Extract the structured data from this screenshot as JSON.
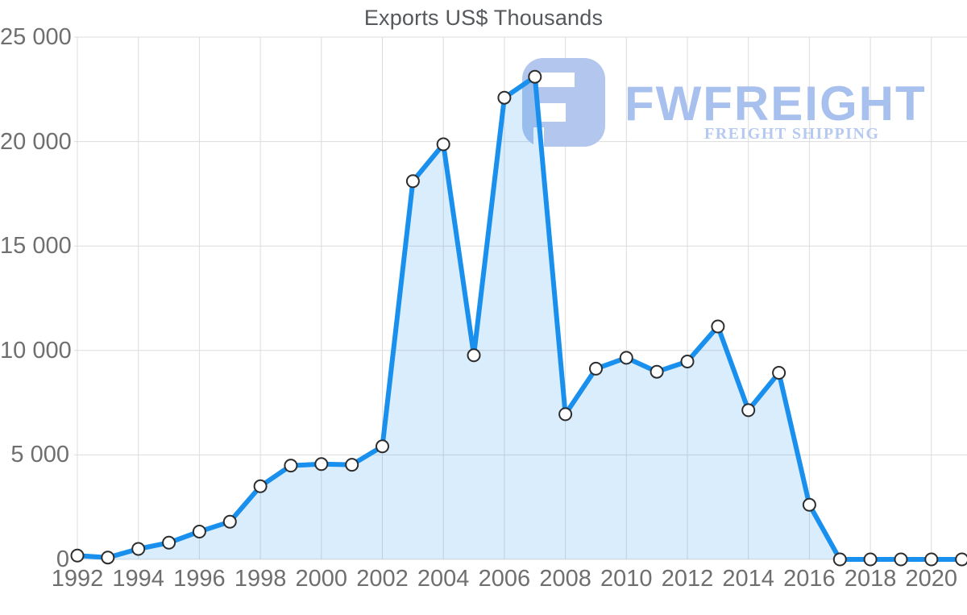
{
  "chart_title": "Exports US$ Thousands",
  "watermark": {
    "brand": "FWFREIGHT",
    "tagline": "FREIGHT SHIPPING",
    "brand_color": "#a7c0ed",
    "tagline_color": "#b5c9f1",
    "logo_color": "#b2c6ee"
  },
  "colors": {
    "line": "#1990ee",
    "area_fill": "rgba(25,144,238,0.16)",
    "marker_fill": "#ffffff",
    "marker_stroke": "#2d2d2d",
    "gridline": "#dcdcdc",
    "tick_text": "#6f6f6f",
    "title_text": "#55585c"
  },
  "chart_data": {
    "type": "area",
    "title": "Exports US$ Thousands",
    "series_name": "Exports US$ Thousands",
    "x": [
      1992,
      1993,
      1994,
      1995,
      1996,
      1997,
      1998,
      1999,
      2000,
      2001,
      2002,
      2003,
      2004,
      2005,
      2006,
      2007,
      2008,
      2009,
      2010,
      2011,
      2012,
      2013,
      2014,
      2015,
      2016,
      2017,
      2018,
      2019,
      2020,
      2021
    ],
    "values": [
      180,
      90,
      500,
      800,
      1330,
      1800,
      3500,
      4490,
      4560,
      4530,
      5410,
      18100,
      19870,
      9770,
      22100,
      23100,
      6950,
      9130,
      9650,
      8980,
      9470,
      11150,
      7140,
      8930,
      2610,
      0,
      0,
      0,
      0,
      0
    ],
    "xlabel": "",
    "ylabel": "",
    "ylim": [
      0,
      25000
    ],
    "y_ticks": [
      0,
      5000,
      10000,
      15000,
      20000,
      25000
    ],
    "y_tick_labels": [
      "0",
      "5 000",
      "10 000",
      "15 000",
      "20 000",
      "25 000"
    ],
    "x_tick_labels": [
      "1992",
      "1994",
      "1996",
      "1998",
      "2000",
      "2002",
      "2004",
      "2006",
      "2008",
      "2010",
      "2012",
      "2014",
      "2016",
      "2018",
      "2020"
    ],
    "grid": true,
    "legend": false,
    "marker": "white-circle"
  }
}
